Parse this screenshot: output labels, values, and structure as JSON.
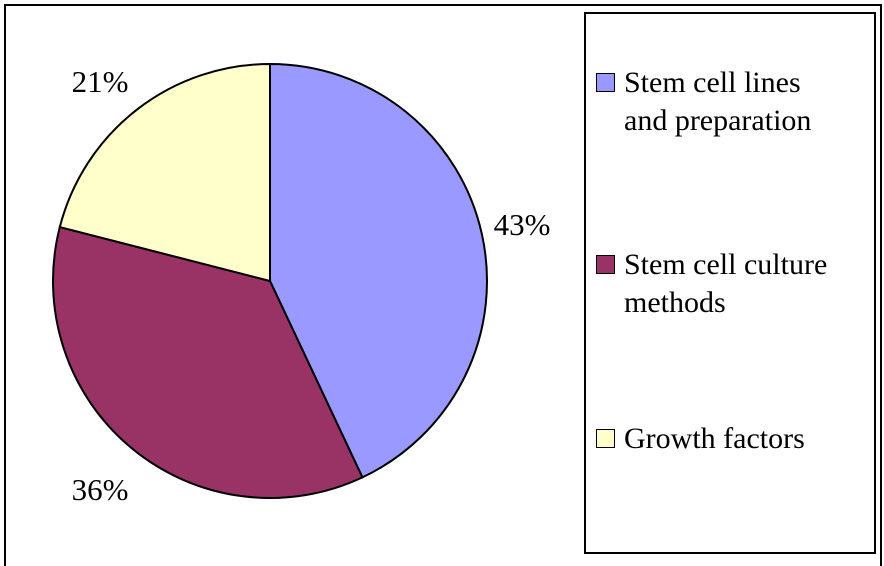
{
  "chart_data": {
    "type": "pie",
    "slices": [
      {
        "label": "Stem cell lines and preparation",
        "value": 43,
        "display": "43%",
        "color": "#9999ff"
      },
      {
        "label": "Stem cell culture methods",
        "value": 36,
        "display": "36%",
        "color": "#993366"
      },
      {
        "label": "Growth factors",
        "value": 21,
        "display": "21%",
        "color": "#ffffcc"
      }
    ],
    "legend": {
      "placement": "right",
      "items": [
        {
          "line1": "Stem cell lines",
          "line2": "and preparation",
          "color": "#9999ff"
        },
        {
          "line1": "Stem cell culture",
          "line2": "methods",
          "color": "#993366"
        },
        {
          "line1": "Growth factors",
          "line2": "",
          "color": "#ffffcc"
        }
      ]
    }
  }
}
